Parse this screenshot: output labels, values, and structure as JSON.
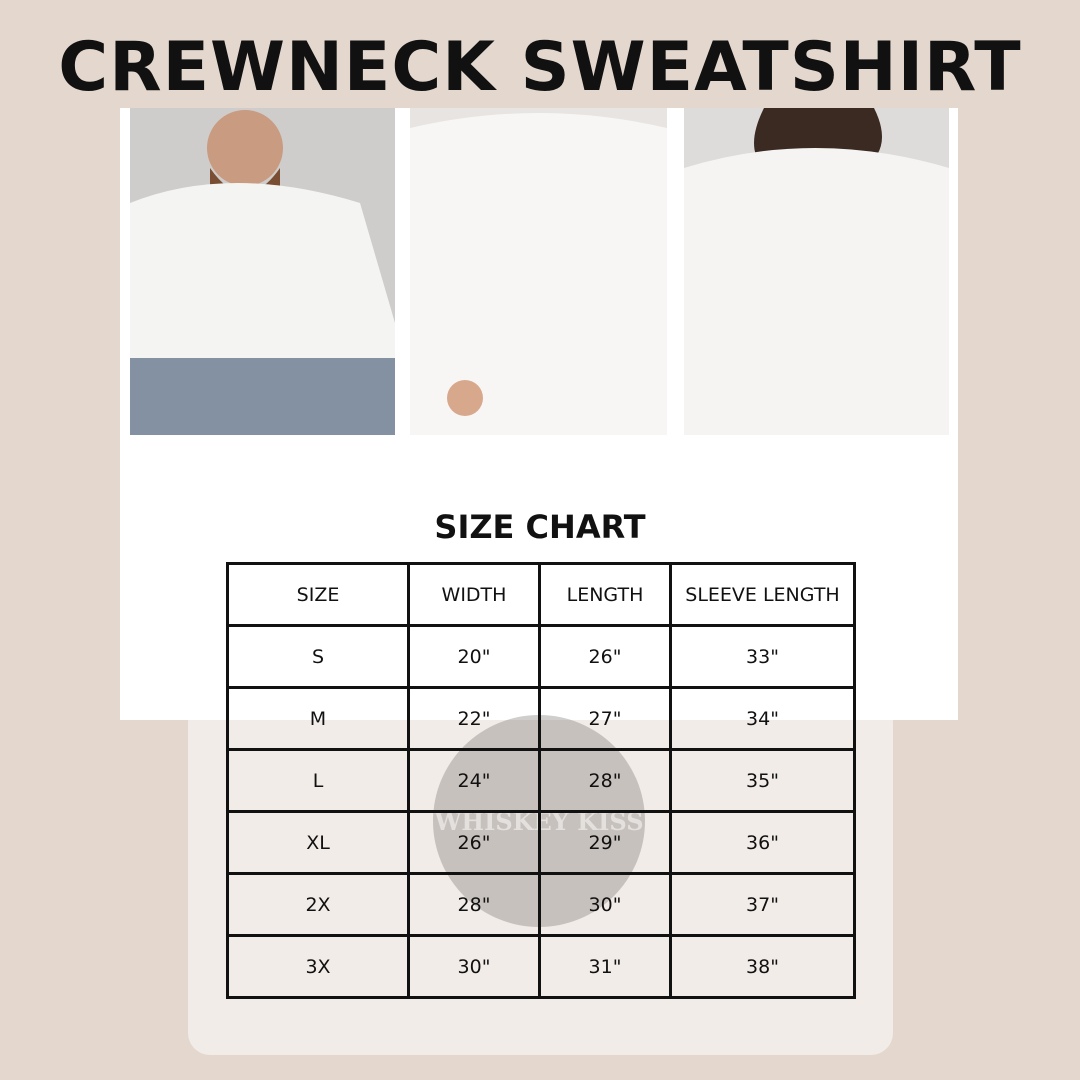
{
  "title": "CREWNECK SWEATSHIRT",
  "chart_title": "SIZE CHART",
  "watermark": "WHISKEY KISS",
  "colors": {
    "background": "#e3d7ce",
    "card": "#f1ece8",
    "panel": "#ffffff",
    "text": "#111111"
  },
  "photos": [
    "man-in-white-sweatshirt",
    "woman-in-white-sweatshirt",
    "woman-in-white-sweatshirt-2"
  ],
  "table": {
    "headers": [
      "SIZE",
      "WIDTH",
      "LENGTH",
      "SLEEVE LENGTH"
    ],
    "rows": [
      [
        "S",
        "20\"",
        "26\"",
        "33\""
      ],
      [
        "M",
        "22\"",
        "27\"",
        "34\""
      ],
      [
        "L",
        "24\"",
        "28\"",
        "35\""
      ],
      [
        "XL",
        "26\"",
        "29\"",
        "36\""
      ],
      [
        "2X",
        "28\"",
        "30\"",
        "37\""
      ],
      [
        "3X",
        "30\"",
        "31\"",
        "38\""
      ]
    ]
  }
}
